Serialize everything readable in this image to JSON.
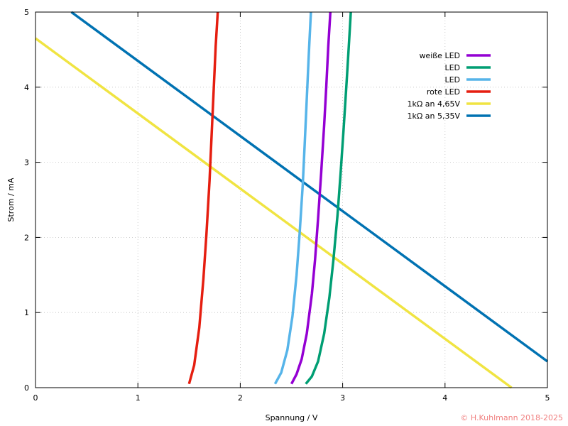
{
  "chart_data": {
    "type": "line",
    "title": "",
    "xlabel": "Spannung / V",
    "ylabel": "Strom / mA",
    "xlim": [
      0,
      5
    ],
    "ylim": [
      0,
      5
    ],
    "xticks": [
      0,
      1,
      2,
      3,
      4,
      5
    ],
    "yticks": [
      0,
      1,
      2,
      3,
      4,
      5
    ],
    "grid": true,
    "legend_position": "top-right",
    "series": [
      {
        "name": "weiße LED",
        "color": "#9400d3",
        "x": [
          2.5,
          2.55,
          2.6,
          2.65,
          2.7,
          2.73,
          2.76,
          2.79,
          2.82,
          2.84,
          2.86,
          2.88
        ],
        "y": [
          0.05,
          0.18,
          0.38,
          0.72,
          1.25,
          1.7,
          2.25,
          2.85,
          3.5,
          4.0,
          4.55,
          5.0
        ]
      },
      {
        "name": "LED",
        "color": "#009e73",
        "x": [
          2.64,
          2.7,
          2.76,
          2.82,
          2.87,
          2.91,
          2.95,
          2.98,
          3.01,
          3.04,
          3.06,
          3.08
        ],
        "y": [
          0.05,
          0.15,
          0.35,
          0.72,
          1.2,
          1.7,
          2.3,
          2.85,
          3.45,
          4.1,
          4.55,
          5.0
        ]
      },
      {
        "name": "LED",
        "color": "#56b4e9",
        "x": [
          2.34,
          2.4,
          2.46,
          2.51,
          2.55,
          2.58,
          2.61,
          2.63,
          2.65,
          2.67,
          2.69
        ],
        "y": [
          0.05,
          0.2,
          0.5,
          0.95,
          1.5,
          2.05,
          2.7,
          3.25,
          3.85,
          4.45,
          5.0
        ]
      },
      {
        "name": "rote LED",
        "color": "#e51e10",
        "x": [
          1.5,
          1.55,
          1.6,
          1.64,
          1.67,
          1.7,
          1.72,
          1.74,
          1.76,
          1.78
        ],
        "y": [
          0.05,
          0.3,
          0.8,
          1.45,
          2.05,
          2.75,
          3.35,
          3.95,
          4.55,
          5.0
        ]
      },
      {
        "name": "1kΩ an 4,65V",
        "color": "#f0e442",
        "x": [
          0,
          4.65
        ],
        "y": [
          4.65,
          0
        ]
      },
      {
        "name": "1kΩ an 5,35V",
        "color": "#0072b2",
        "x": [
          0.35,
          5
        ],
        "y": [
          5,
          0.35
        ]
      }
    ]
  },
  "copyright": "© H.Kuhlmann 2018-2025"
}
